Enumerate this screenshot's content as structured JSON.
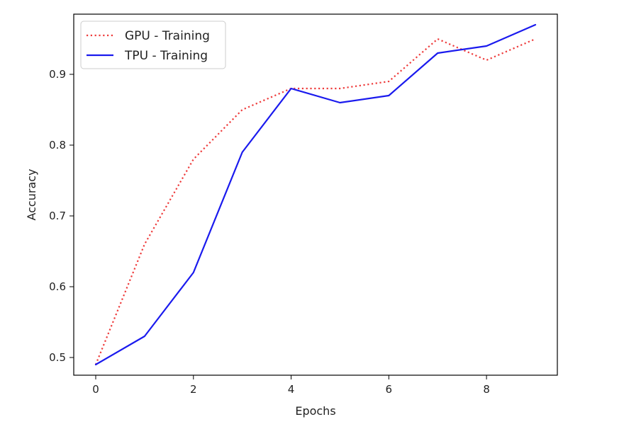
{
  "chart_data": {
    "type": "line",
    "title": "",
    "xlabel": "Epochs",
    "ylabel": "Accuracy",
    "xlim": [
      -0.45,
      9.45
    ],
    "ylim": [
      0.475,
      0.985
    ],
    "x_ticks": [
      0,
      2,
      4,
      6,
      8
    ],
    "y_ticks": [
      0.5,
      0.6,
      0.7,
      0.8,
      0.9
    ],
    "x_tick_labels": [
      "0",
      "2",
      "4",
      "6",
      "8"
    ],
    "y_tick_labels": [
      "0.5",
      "0.6",
      "0.7",
      "0.8",
      "0.9"
    ],
    "grid": false,
    "legend_position": "top-left",
    "x": [
      0,
      1,
      2,
      3,
      4,
      5,
      6,
      7,
      8,
      9
    ],
    "series": [
      {
        "name": "GPU - Training",
        "color": "#ee3b3b",
        "line_style": "dotted",
        "values": [
          0.49,
          0.66,
          0.78,
          0.85,
          0.88,
          0.88,
          0.89,
          0.95,
          0.92,
          0.95
        ]
      },
      {
        "name": "TPU - Training",
        "color": "#1a1aee",
        "line_style": "solid",
        "values": [
          0.49,
          0.53,
          0.62,
          0.79,
          0.88,
          0.86,
          0.87,
          0.93,
          0.94,
          0.97
        ]
      }
    ]
  }
}
